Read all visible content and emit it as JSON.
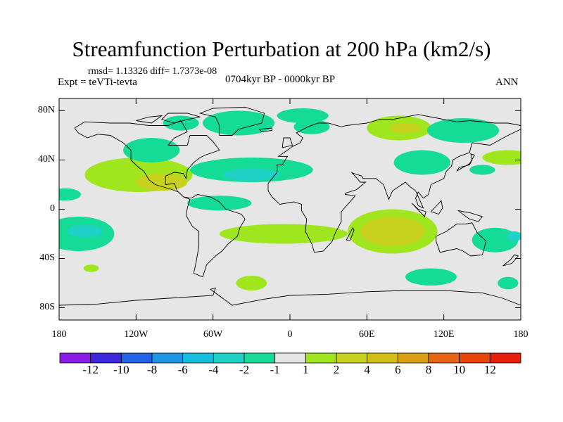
{
  "title": "Streamfunction Perturbation at 200 hPa (km2/s)",
  "stats_text": "rmsd= 1.13326 diff= 1.7373e-08",
  "expt_text": "Expt = teVTi-tevta",
  "period_text": "0704kyr BP - 0000kyr BP",
  "season_text": "ANN",
  "y_ticks": [
    {
      "lat": 80,
      "label": "80N"
    },
    {
      "lat": 40,
      "label": "40N"
    },
    {
      "lat": 0,
      "label": "0"
    },
    {
      "lat": -40,
      "label": "40S"
    },
    {
      "lat": -80,
      "label": "80S"
    }
  ],
  "x_ticks": [
    {
      "lon": -180,
      "label": "180"
    },
    {
      "lon": -120,
      "label": "120W"
    },
    {
      "lon": -60,
      "label": "60W"
    },
    {
      "lon": 0,
      "label": "0"
    },
    {
      "lon": 60,
      "label": "60E"
    },
    {
      "lon": 120,
      "label": "120E"
    },
    {
      "lon": 180,
      "label": "180"
    }
  ],
  "colorbar": {
    "colors": [
      "#8a1ee6",
      "#3c28dc",
      "#2262e8",
      "#1e96e6",
      "#14bede",
      "#1ed2c8",
      "#14dc96",
      "#e6e6e6",
      "#a0e61e",
      "#c8d21e",
      "#d2be14",
      "#dca014",
      "#e66414",
      "#e6460a",
      "#e61e0a"
    ],
    "labels": [
      "-12",
      "-10",
      "-8",
      "-6",
      "-4",
      "-2",
      "-1",
      "1",
      "2",
      "4",
      "6",
      "8",
      "10",
      "12"
    ]
  },
  "colors": {
    "background": "#e6e6e6",
    "coast": "#000000"
  },
  "anomalies": [
    {
      "lon": 170,
      "lat": 42,
      "rx": 20,
      "ry": 6,
      "level": 1
    },
    {
      "lon": -175,
      "lat": 12,
      "rx": 12,
      "ry": 5,
      "level": -1
    },
    {
      "lon": -118,
      "lat": 28,
      "rx": 42,
      "ry": 14,
      "level": 1
    },
    {
      "lon": -100,
      "lat": 22,
      "rx": 20,
      "ry": 7,
      "level": 2
    },
    {
      "lon": -108,
      "lat": 48,
      "rx": 22,
      "ry": 10,
      "level": -1
    },
    {
      "lon": -85,
      "lat": 70,
      "rx": 14,
      "ry": 6,
      "level": -1
    },
    {
      "lon": -40,
      "lat": 70,
      "rx": 28,
      "ry": 10,
      "level": -1
    },
    {
      "lon": 10,
      "lat": 76,
      "rx": 20,
      "ry": 6,
      "level": -1
    },
    {
      "lon": 17,
      "lat": 67,
      "rx": 14,
      "ry": 6,
      "level": -1
    },
    {
      "lon": 85,
      "lat": 66,
      "rx": 25,
      "ry": 10,
      "level": 1
    },
    {
      "lon": 90,
      "lat": 66,
      "rx": 12,
      "ry": 4,
      "level": 2
    },
    {
      "lon": 135,
      "lat": 64,
      "rx": 28,
      "ry": 10,
      "level": -1
    },
    {
      "lon": 103,
      "lat": 38,
      "rx": 22,
      "ry": 10,
      "level": -1
    },
    {
      "lon": 150,
      "lat": 32,
      "rx": 10,
      "ry": 4,
      "level": -1
    },
    {
      "lon": -30,
      "lat": 32,
      "rx": 48,
      "ry": 10,
      "level": -1
    },
    {
      "lon": -55,
      "lat": 5,
      "rx": 25,
      "ry": 6,
      "level": -1
    },
    {
      "lon": -30,
      "lat": 28,
      "rx": 22,
      "ry": 5,
      "level": -2
    },
    {
      "lon": -165,
      "lat": -20,
      "rx": 28,
      "ry": 14,
      "level": -1
    },
    {
      "lon": -160,
      "lat": -18,
      "rx": 14,
      "ry": 5,
      "level": -2
    },
    {
      "lon": -155,
      "lat": -48,
      "rx": 6,
      "ry": 3,
      "level": 1
    },
    {
      "lon": -5,
      "lat": -20,
      "rx": 50,
      "ry": 8,
      "level": 1
    },
    {
      "lon": 80,
      "lat": -18,
      "rx": 35,
      "ry": 18,
      "level": 1
    },
    {
      "lon": 80,
      "lat": -18,
      "rx": 25,
      "ry": 12,
      "level": 2
    },
    {
      "lon": -30,
      "lat": -60,
      "rx": 12,
      "ry": 6,
      "level": 1
    },
    {
      "lon": 110,
      "lat": -55,
      "rx": 20,
      "ry": 7,
      "level": -1
    },
    {
      "lon": 160,
      "lat": -25,
      "rx": 18,
      "ry": 10,
      "level": -1
    },
    {
      "lon": 175,
      "lat": -22,
      "rx": 6,
      "ry": 4,
      "level": -2
    },
    {
      "lon": 170,
      "lat": -60,
      "rx": 8,
      "ry": 5,
      "level": -1
    }
  ]
}
